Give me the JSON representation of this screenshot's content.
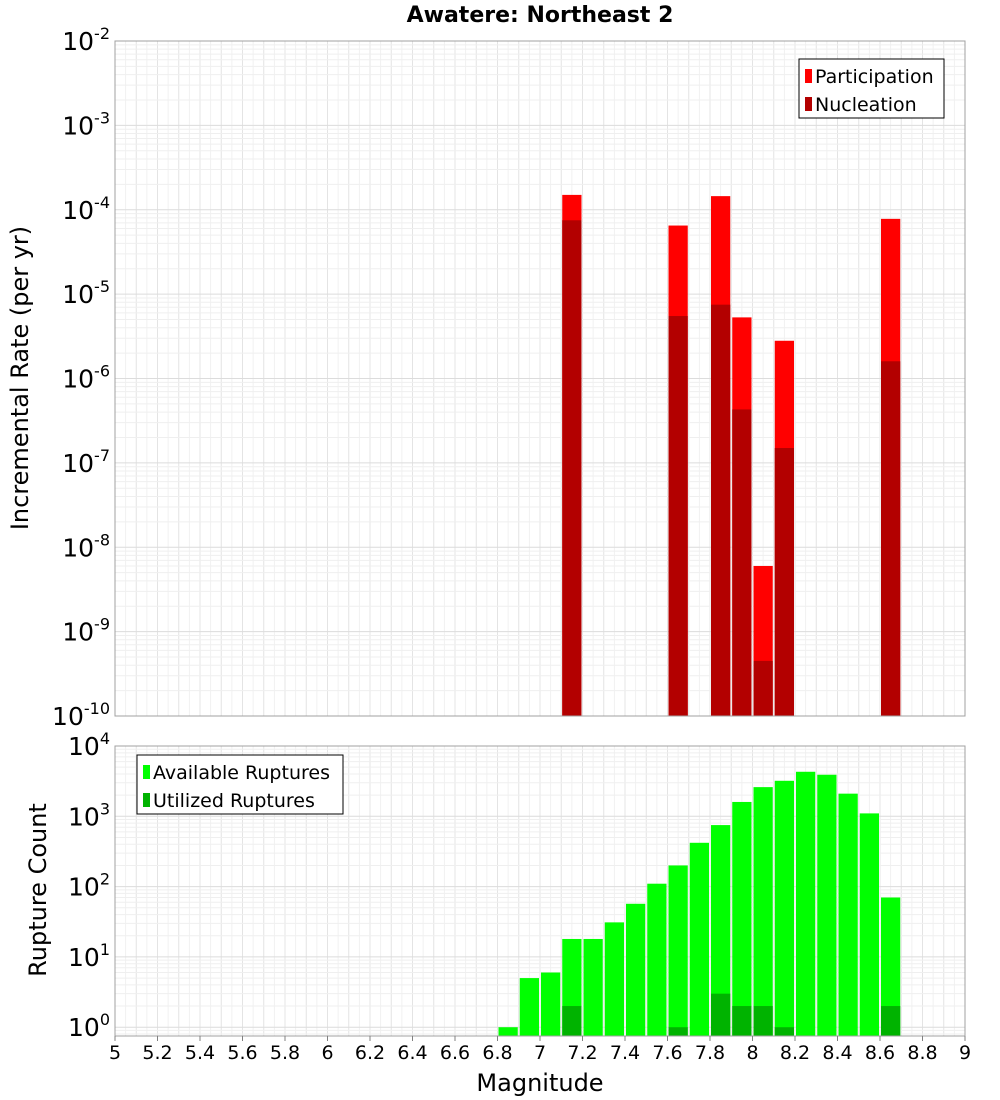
{
  "chart_data": [
    {
      "type": "bar",
      "title": "Awatere: Northeast 2",
      "ylabel": "Incremental Rate (per yr)",
      "xlabel": "",
      "yscale": "log",
      "xlim": [
        5,
        9
      ],
      "ylim": [
        1e-10,
        0.01
      ],
      "bar_width": 0.1,
      "y_tick_labels": [
        {
          "base": "10",
          "exp": "-10"
        },
        {
          "base": "10",
          "exp": "-9"
        },
        {
          "base": "10",
          "exp": "-8"
        },
        {
          "base": "10",
          "exp": "-7"
        },
        {
          "base": "10",
          "exp": "-6"
        },
        {
          "base": "10",
          "exp": "-5"
        },
        {
          "base": "10",
          "exp": "-4"
        },
        {
          "base": "10",
          "exp": "-3"
        },
        {
          "base": "10",
          "exp": "-2"
        }
      ],
      "legend": "top-right",
      "series": [
        {
          "name": "Participation",
          "color": "#ff0000",
          "x": [
            7.15,
            7.65,
            7.85,
            7.95,
            8.05,
            8.15,
            8.65
          ],
          "values": [
            0.00015,
            6.5e-05,
            0.000145,
            5.3e-06,
            6e-09,
            2.8e-06,
            7.8e-05
          ]
        },
        {
          "name": "Nucleation",
          "color": "#b30000",
          "x": [
            7.15,
            7.65,
            7.85,
            7.95,
            8.05,
            8.15,
            8.65
          ],
          "values": [
            7.5e-05,
            5.5e-06,
            7.5e-06,
            4.3e-07,
            4.5e-10,
            1.5e-07,
            1.6e-06
          ]
        }
      ]
    },
    {
      "type": "bar",
      "title": "",
      "ylabel": "Rupture Count",
      "xlabel": "Magnitude",
      "yscale": "log",
      "xlim": [
        5,
        9
      ],
      "ylim": [
        0.75,
        10000
      ],
      "bar_width": 0.1,
      "x_tick_labels": [
        "5",
        "5.2",
        "5.4",
        "5.6",
        "5.8",
        "6",
        "6.2",
        "6.4",
        "6.6",
        "6.8",
        "7",
        "7.2",
        "7.4",
        "7.6",
        "7.8",
        "8",
        "8.2",
        "8.4",
        "8.6",
        "8.8",
        "9"
      ],
      "y_tick_labels": [
        {
          "base": "10",
          "exp": "0"
        },
        {
          "base": "10",
          "exp": "1"
        },
        {
          "base": "10",
          "exp": "2"
        },
        {
          "base": "10",
          "exp": "3"
        },
        {
          "base": "10",
          "exp": "4"
        }
      ],
      "legend": "top-left",
      "series": [
        {
          "name": "Available Ruptures",
          "color": "#00ff00",
          "x": [
            6.85,
            6.95,
            7.05,
            7.15,
            7.25,
            7.35,
            7.45,
            7.55,
            7.65,
            7.75,
            7.85,
            7.95,
            8.05,
            8.15,
            8.25,
            8.35,
            8.45,
            8.55,
            8.65
          ],
          "values": [
            1,
            5,
            6,
            18,
            18,
            31,
            57,
            110,
            200,
            420,
            750,
            1600,
            2600,
            3200,
            4300,
            3900,
            2100,
            1100,
            70
          ]
        },
        {
          "name": "Utilized Ruptures",
          "color": "#00b300",
          "x": [
            7.15,
            7.65,
            7.85,
            7.95,
            8.05,
            8.15,
            8.65
          ],
          "values": [
            2,
            1,
            3,
            2,
            2,
            1,
            2
          ]
        }
      ]
    }
  ]
}
